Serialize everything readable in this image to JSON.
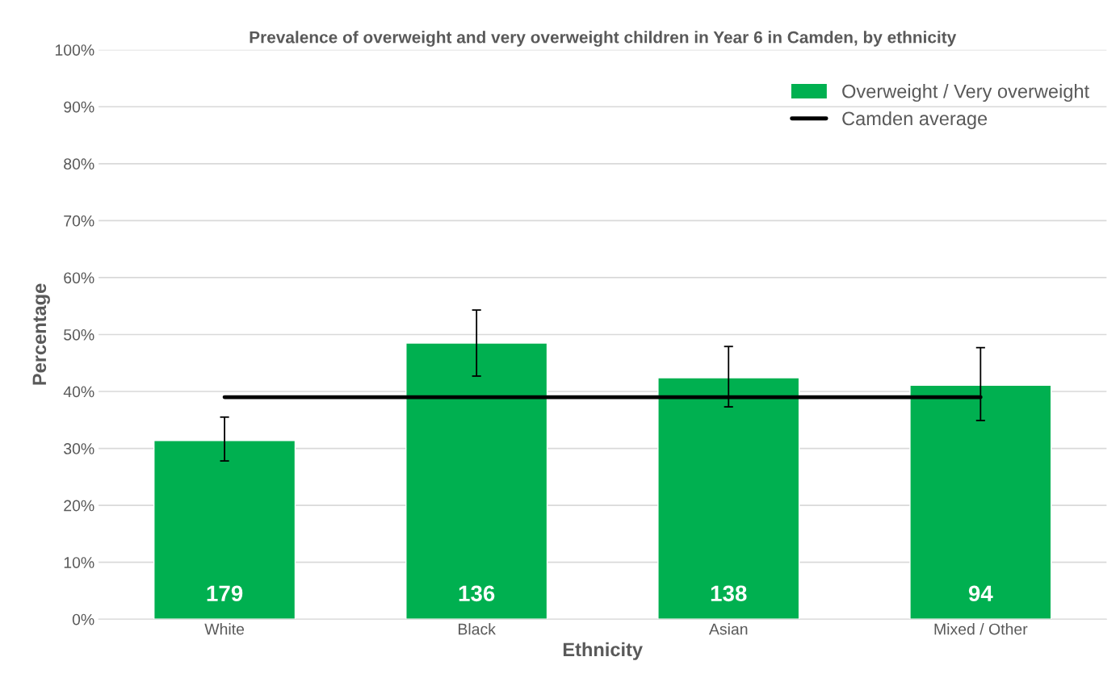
{
  "chart_data": {
    "type": "bar",
    "title": "Prevalence of overweight and very overweight children in Year 6 in Camden, by ethnicity",
    "xlabel": "Ethnicity",
    "ylabel": "Percentage",
    "categories": [
      "White",
      "Black",
      "Asian",
      "Mixed / Other"
    ],
    "series": [
      {
        "name": "Overweight / Very overweight",
        "color": "#00b050",
        "values": [
          31.4,
          48.5,
          42.4,
          41.1
        ],
        "errors": [
          [
            27.8,
            35.5
          ],
          [
            42.7,
            54.3
          ],
          [
            37.3,
            47.9
          ],
          [
            34.9,
            47.7
          ]
        ]
      },
      {
        "name": "Camden average",
        "type": "line",
        "color": "#000000",
        "values": [
          39,
          39,
          39,
          39
        ]
      }
    ],
    "annotations": [
      "179",
      "136",
      "138",
      "94"
    ],
    "ylim": [
      0,
      100
    ],
    "yticks": [
      {
        "value": 0,
        "label": "0%"
      },
      {
        "value": 10,
        "label": "10%"
      },
      {
        "value": 20,
        "label": "20%"
      },
      {
        "value": 30,
        "label": "30%"
      },
      {
        "value": 40,
        "label": "40%"
      },
      {
        "value": 50,
        "label": "50%"
      },
      {
        "value": 60,
        "label": "60%"
      },
      {
        "value": 70,
        "label": "70%"
      },
      {
        "value": 80,
        "label": "80%"
      },
      {
        "value": 90,
        "label": "90%"
      },
      {
        "value": 100,
        "label": "100%"
      }
    ],
    "grid": "y",
    "legend": "top right"
  }
}
